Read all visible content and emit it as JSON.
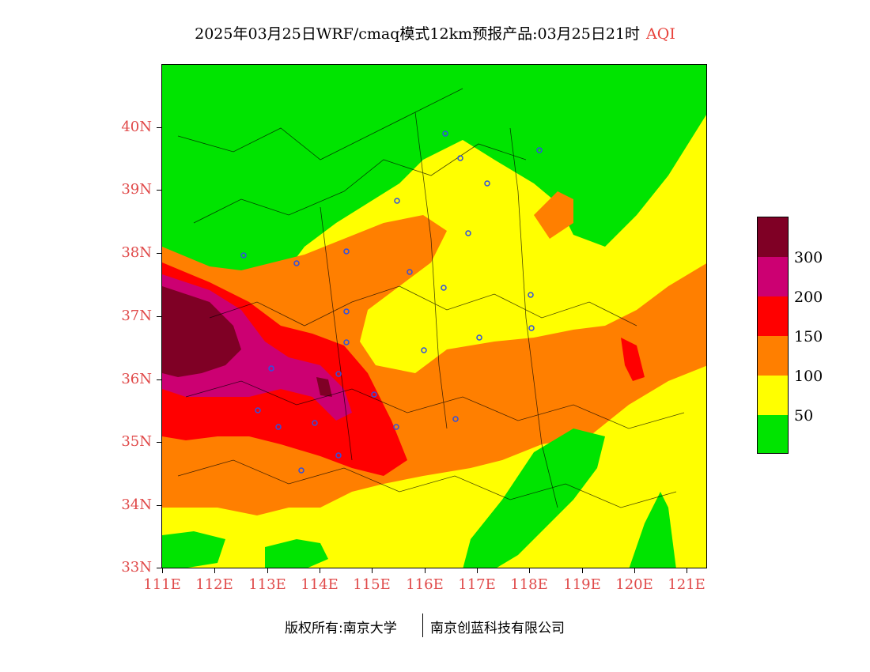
{
  "title": {
    "main": "2025年03月25日WRF/cmaq模式12km预报产品:03月25日21时",
    "product": "AQI"
  },
  "map": {
    "lat_range": [
      33,
      41
    ],
    "lon_range": [
      111,
      121.4
    ],
    "lat_labels": [
      "40N",
      "39N",
      "38N",
      "37N",
      "36N",
      "35N",
      "34N",
      "33N"
    ],
    "lon_labels": [
      "111E",
      "112E",
      "113E",
      "114E",
      "115E",
      "116E",
      "117E",
      "118E",
      "119E",
      "120E",
      "121E"
    ],
    "zones": [
      {
        "name": "north-green",
        "category": "0-50"
      },
      {
        "name": "central-yellow",
        "category": "50-100"
      },
      {
        "name": "west-orange",
        "category": "100-150"
      },
      {
        "name": "east-orange",
        "category": "100-150"
      },
      {
        "name": "red-core",
        "category": "150-200"
      },
      {
        "name": "magenta-core",
        "category": "200-300"
      },
      {
        "name": "maroon-core",
        "category": ">300"
      },
      {
        "name": "south-green",
        "category": "0-50"
      }
    ]
  },
  "legend": {
    "colors": [
      "#7f0025",
      "#cc0072",
      "#ff0000",
      "#ff7f00",
      "#ffff00",
      "#00e400"
    ],
    "labels": [
      "300",
      "200",
      "150",
      "100",
      "50"
    ]
  },
  "footer": {
    "left": "版权所有:南京大学",
    "right": "南京创蓝科技有限公司"
  }
}
